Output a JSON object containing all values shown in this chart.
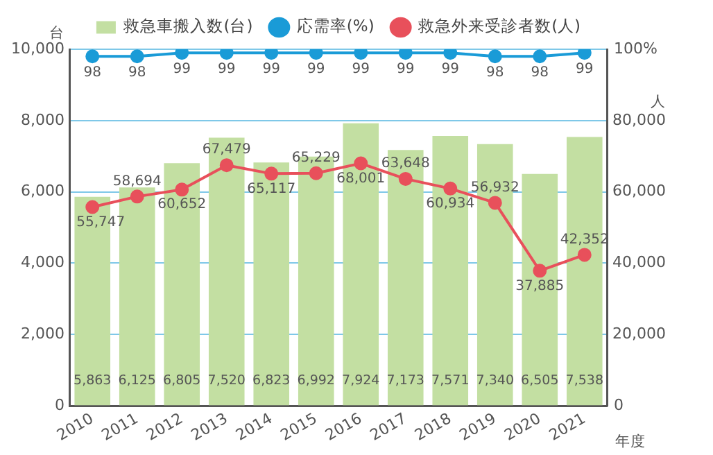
{
  "chart_data": {
    "type": "bar",
    "xlabel": "年度",
    "ylabel": "台",
    "y2label": "人",
    "categories": [
      "2010",
      "2011",
      "2012",
      "2013",
      "2014",
      "2015",
      "2016",
      "2017",
      "2018",
      "2019",
      "2020",
      "2021"
    ],
    "series": [
      {
        "name": "救急車搬入数(台)",
        "color": "#c3dfa2",
        "values": [
          5863,
          6125,
          6805,
          7520,
          6823,
          6992,
          7924,
          7173,
          7571,
          7340,
          6505,
          7538
        ],
        "value_labels": [
          "5,863",
          "6,125",
          "6,805",
          "7,520",
          "6,823",
          "6,992",
          "7,924",
          "7,173",
          "7,571",
          "7,340",
          "6,505",
          "7,538"
        ]
      },
      {
        "type": "line",
        "name": "応需率(%)",
        "color": "#1a9bd7",
        "axis": "y3",
        "values": [
          98,
          98,
          99,
          99,
          99,
          99,
          99,
          99,
          99,
          98,
          98,
          99
        ],
        "value_labels": [
          "98",
          "98",
          "99",
          "99",
          "99",
          "99",
          "99",
          "99",
          "99",
          "98",
          "98",
          "99"
        ]
      },
      {
        "type": "line",
        "name": "救急外来受診者数(人)",
        "color": "#e8505b",
        "axis": "y2",
        "values": [
          55747,
          58694,
          60652,
          67479,
          65117,
          65229,
          68001,
          63648,
          60934,
          56932,
          37885,
          42352
        ],
        "value_labels": [
          "55,747",
          "58,694",
          "60,652",
          "67,479",
          "65,117",
          "65,229",
          "68,001",
          "63,648",
          "60,934",
          "56,932",
          "37,885",
          "42,352"
        ]
      }
    ],
    "ylim": [
      0,
      10000
    ],
    "yticks": [
      0,
      {
        "value": 2000,
        "label": "2,000"
      },
      {
        "value": 4000,
        "label": "4,000"
      },
      {
        "value": 6000,
        "label": "6,000"
      },
      {
        "value": 8000,
        "label": "8,000"
      },
      {
        "value": 10000,
        "label": "10,000"
      }
    ],
    "y2lim": [
      0,
      100000
    ],
    "y2ticks": [
      {
        "value": 0,
        "label": null
      },
      {
        "value": 20000,
        "label": "20,000"
      },
      {
        "value": 40000,
        "label": "40,000"
      },
      {
        "value": 60000,
        "label": "60,000"
      },
      {
        "value": 80000,
        "label": "80,000"
      }
    ],
    "y3lim": [
      0,
      100
    ],
    "y3ticks": [
      0,
      {
        "value": 100,
        "label": "100%"
      }
    ],
    "grid": "y",
    "legend": "top",
    "marker": "circle"
  }
}
